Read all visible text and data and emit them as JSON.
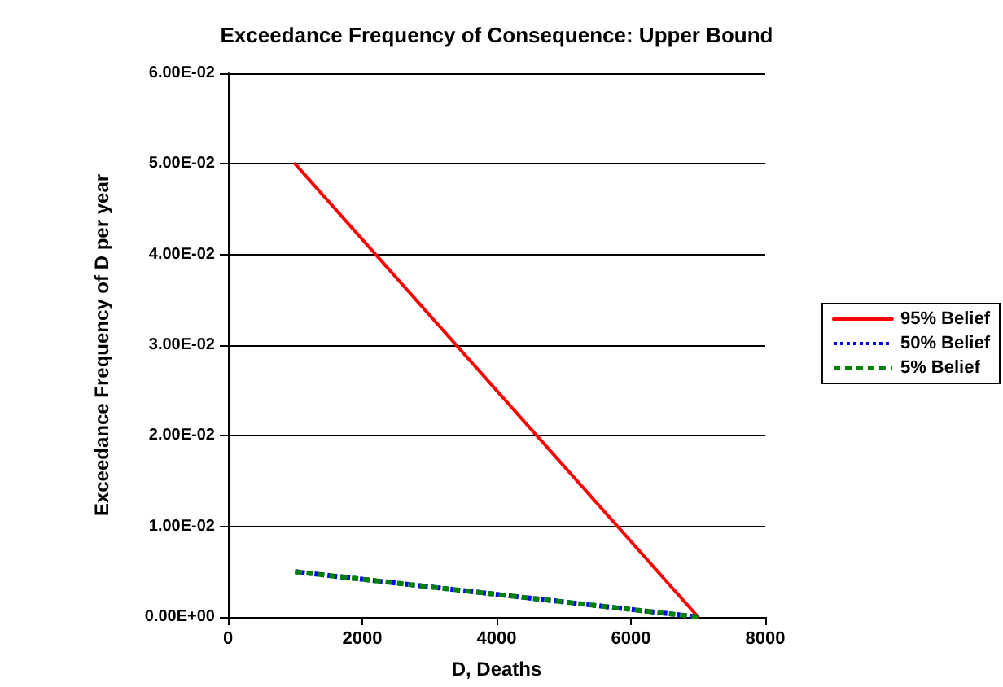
{
  "chart_data": {
    "type": "line",
    "title": "Exceedance Frequency of Consequence: Upper Bound",
    "xlabel": "D, Deaths",
    "ylabel": "Exceedance Frequency of D per year",
    "x": [
      1000,
      7000
    ],
    "xlim": [
      0,
      8000
    ],
    "xticks": [
      0,
      2000,
      4000,
      6000,
      8000
    ],
    "ylim": [
      0,
      0.06
    ],
    "yticks": [
      {
        "value": 0,
        "label": "0.00E+00"
      },
      {
        "value": 0.01,
        "label": "1.00E-02"
      },
      {
        "value": 0.02,
        "label": "2.00E-02"
      },
      {
        "value": 0.03,
        "label": "3.00E-02"
      },
      {
        "value": 0.04,
        "label": "4.00E-02"
      },
      {
        "value": 0.05,
        "label": "5.00E-02"
      },
      {
        "value": 0.06,
        "label": "6.00E-02"
      }
    ],
    "series": [
      {
        "name": "95% Belief",
        "color": "#ff0000",
        "values": [
          0.05,
          0
        ],
        "line_style": "solid"
      },
      {
        "name": "50% Belief",
        "color": "#0000ff",
        "values": [
          0.005,
          0
        ],
        "line_style": "dotted"
      },
      {
        "name": "5% Belief",
        "color": "#008000",
        "values": [
          0.005,
          0
        ],
        "line_style": "dashed"
      }
    ],
    "grid": "y",
    "legend": "right",
    "marker": "none"
  }
}
